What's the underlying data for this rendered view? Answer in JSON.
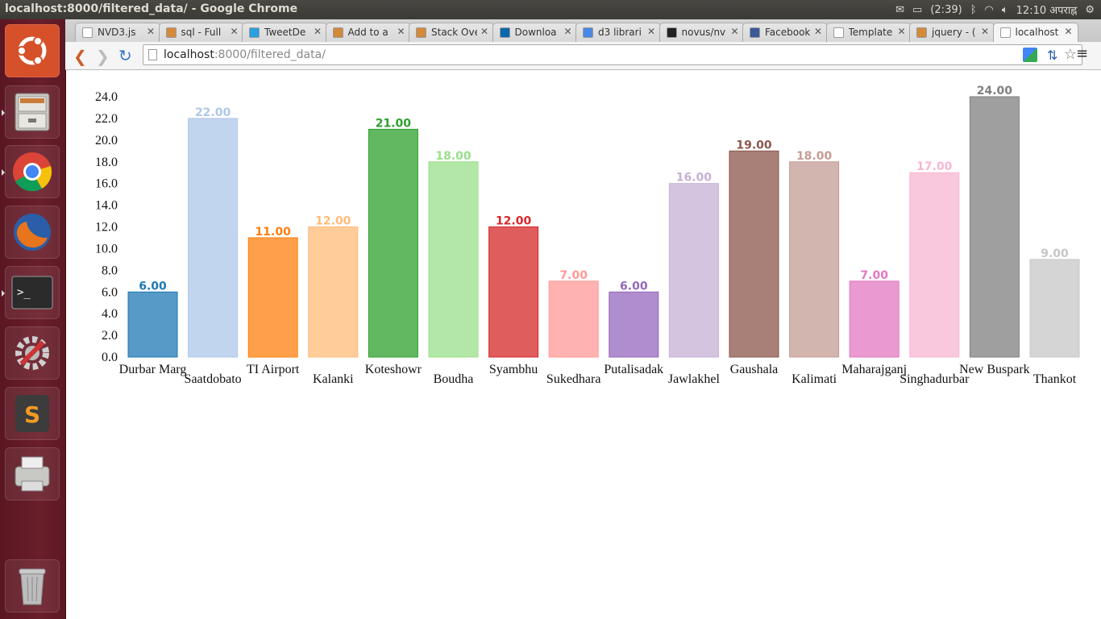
{
  "window": {
    "title": "localhost:8000/filtered_data/ - Google Chrome",
    "battery": "(2:39)",
    "clock": "12:10 अपराह्न"
  },
  "tabs": [
    {
      "label": "NVD3.js",
      "favicon": "doc-icon",
      "color": "#ffffff"
    },
    {
      "label": "sql - Full",
      "favicon": "stackoverflow-icon",
      "color": "#d38a3a"
    },
    {
      "label": "TweetDe",
      "favicon": "twitter-icon",
      "color": "#2aa0e0"
    },
    {
      "label": "Add to a",
      "favicon": "stackoverflow-icon",
      "color": "#d38a3a"
    },
    {
      "label": "Stack Ove",
      "favicon": "stackoverflow-icon",
      "color": "#d38a3a"
    },
    {
      "label": "Downloa",
      "favicon": "jquery-icon",
      "color": "#0868ac"
    },
    {
      "label": "d3 librari",
      "favicon": "google-icon",
      "color": "#4a88e8"
    },
    {
      "label": "novus/nv",
      "favicon": "github-icon",
      "color": "#222222"
    },
    {
      "label": "Facebook",
      "favicon": "facebook-icon",
      "color": "#3b5998"
    },
    {
      "label": "Template",
      "favicon": "doc-icon",
      "color": "#ffffff"
    },
    {
      "label": "jquery - (",
      "favicon": "stackoverflow-icon",
      "color": "#d38a3a"
    },
    {
      "label": "localhost",
      "favicon": "doc-icon",
      "color": "#ffffff"
    }
  ],
  "toolbar": {
    "url_host": "localhost",
    "url_path": ":8000/filtered_data/"
  },
  "launcher": [
    "ubuntu-logo-icon",
    "file-cabinet-icon",
    "chrome-icon",
    "firefox-icon",
    "terminal-icon",
    "settings-icon",
    "sublime-text-icon",
    "printer-icon",
    "trash-icon"
  ],
  "chart_data": {
    "type": "bar",
    "title": "",
    "xlabel": "",
    "ylabel": "",
    "ylim": [
      0,
      24
    ],
    "yticks": [
      "0.0",
      "2.0",
      "4.0",
      "6.0",
      "8.0",
      "10.0",
      "12.0",
      "14.0",
      "16.0",
      "18.0",
      "20.0",
      "22.0",
      "24.0"
    ],
    "categories": [
      "Durbar Marg",
      "Saatdobato",
      "TI Airport",
      "Kalanki",
      "Koteshowr",
      "Boudha",
      "Syambhu",
      "Sukedhara",
      "Putalisadak",
      "Jawlakhel",
      "Gaushala",
      "Kalimati",
      "Maharajganj",
      "Singhadurbar",
      "New Buspark",
      "Thankot"
    ],
    "values": [
      6,
      22,
      11,
      12,
      21,
      18,
      12,
      7,
      6,
      16,
      19,
      18,
      7,
      17,
      24,
      9
    ],
    "value_labels": [
      "6.00",
      "22.00",
      "11.00",
      "12.00",
      "21.00",
      "18.00",
      "12.00",
      "7.00",
      "6.00",
      "16.00",
      "19.00",
      "18.00",
      "7.00",
      "17.00",
      "24.00",
      "9.00"
    ],
    "colors": [
      "#1f77b4",
      "#aec7e8",
      "#ff7f0e",
      "#ffbb78",
      "#2ca02c",
      "#98df8a",
      "#d62728",
      "#ff9896",
      "#9467bd",
      "#c5b0d5",
      "#8c564b",
      "#c49c94",
      "#e377c2",
      "#f7b6d2",
      "#7f7f7f",
      "#c7c7c7"
    ],
    "grid": false,
    "legend": "none"
  }
}
